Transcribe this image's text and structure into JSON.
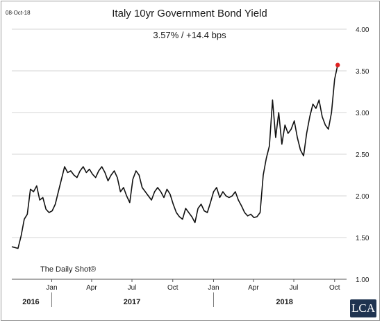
{
  "chart_data": {
    "type": "line",
    "date_stamp": "08-Oct-18",
    "title": "Italy 10yr Government Bond Yield",
    "subtitle": "3.57%  /  +14.4 bps",
    "source": "The Daily Shot®",
    "y_ticks": [
      "4.00",
      "3.50",
      "3.00",
      "2.50",
      "2.00",
      "1.50",
      "1.00"
    ],
    "ylim": [
      1.0,
      4.0
    ],
    "x_month_ticks": [
      {
        "label": "Jan",
        "date": "2017-01-01"
      },
      {
        "label": "Apr",
        "date": "2017-04-01"
      },
      {
        "label": "Jul",
        "date": "2017-07-01"
      },
      {
        "label": "Oct",
        "date": "2017-10-01"
      },
      {
        "label": "Jan",
        "date": "2018-01-01"
      },
      {
        "label": "Apr",
        "date": "2018-04-01"
      },
      {
        "label": "Jul",
        "date": "2018-07-01"
      },
      {
        "label": "Oct",
        "date": "2018-10-01"
      }
    ],
    "x_year_labels": [
      "2016",
      "2017",
      "2018"
    ],
    "xlim": [
      "2016-10-03",
      "2018-10-28"
    ],
    "grid": "horizontal",
    "line_color": "#111111",
    "last_point_color": "#e02020",
    "series": [
      {
        "x": [
          "2016-10-03",
          "2016-10-10",
          "2016-10-17",
          "2016-10-24",
          "2016-10-31",
          "2016-11-07",
          "2016-11-14",
          "2016-11-21",
          "2016-11-28",
          "2016-12-05",
          "2016-12-12",
          "2016-12-19",
          "2016-12-26",
          "2017-01-02",
          "2017-01-09",
          "2017-01-16",
          "2017-01-23",
          "2017-01-30",
          "2017-02-06",
          "2017-02-13",
          "2017-02-20",
          "2017-02-27",
          "2017-03-06",
          "2017-03-13",
          "2017-03-20",
          "2017-03-27",
          "2017-04-03",
          "2017-04-10",
          "2017-04-17",
          "2017-04-24",
          "2017-05-01",
          "2017-05-08",
          "2017-05-15",
          "2017-05-22",
          "2017-05-29",
          "2017-06-05",
          "2017-06-12",
          "2017-06-19",
          "2017-06-26",
          "2017-07-03",
          "2017-07-10",
          "2017-07-17",
          "2017-07-24",
          "2017-07-31",
          "2017-08-07",
          "2017-08-14",
          "2017-08-21",
          "2017-08-28",
          "2017-09-04",
          "2017-09-11",
          "2017-09-18",
          "2017-09-25",
          "2017-10-02",
          "2017-10-09",
          "2017-10-16",
          "2017-10-23",
          "2017-10-30",
          "2017-11-06",
          "2017-11-13",
          "2017-11-20",
          "2017-11-27",
          "2017-12-04",
          "2017-12-11",
          "2017-12-18",
          "2017-12-25",
          "2018-01-01",
          "2018-01-08",
          "2018-01-15",
          "2018-01-22",
          "2018-01-29",
          "2018-02-05",
          "2018-02-12",
          "2018-02-19",
          "2018-02-26",
          "2018-03-05",
          "2018-03-12",
          "2018-03-19",
          "2018-03-26",
          "2018-04-02",
          "2018-04-09",
          "2018-04-16",
          "2018-04-23",
          "2018-04-30",
          "2018-05-07",
          "2018-05-14",
          "2018-05-21",
          "2018-05-28",
          "2018-06-04",
          "2018-06-11",
          "2018-06-18",
          "2018-06-25",
          "2018-07-02",
          "2018-07-09",
          "2018-07-16",
          "2018-07-23",
          "2018-07-30",
          "2018-08-06",
          "2018-08-13",
          "2018-08-20",
          "2018-08-27",
          "2018-09-03",
          "2018-09-10",
          "2018-09-17",
          "2018-09-24",
          "2018-10-01",
          "2018-10-08"
        ],
        "values": [
          1.39,
          1.38,
          1.37,
          1.52,
          1.72,
          1.78,
          2.08,
          2.05,
          2.12,
          1.95,
          1.98,
          1.84,
          1.8,
          1.82,
          1.9,
          2.05,
          2.2,
          2.35,
          2.28,
          2.3,
          2.25,
          2.22,
          2.3,
          2.35,
          2.28,
          2.32,
          2.26,
          2.22,
          2.3,
          2.35,
          2.28,
          2.18,
          2.25,
          2.3,
          2.22,
          2.05,
          2.1,
          2.0,
          1.92,
          2.2,
          2.3,
          2.25,
          2.1,
          2.05,
          2.0,
          1.95,
          2.05,
          2.1,
          2.05,
          1.98,
          2.08,
          2.02,
          1.9,
          1.8,
          1.75,
          1.72,
          1.85,
          1.8,
          1.75,
          1.68,
          1.85,
          1.9,
          1.82,
          1.8,
          1.92,
          2.05,
          2.1,
          1.98,
          2.05,
          2.0,
          1.98,
          2.0,
          2.05,
          1.95,
          1.88,
          1.8,
          1.76,
          1.78,
          1.74,
          1.75,
          1.8,
          2.25,
          2.45,
          2.6,
          3.15,
          2.7,
          3.0,
          2.62,
          2.85,
          2.75,
          2.8,
          2.9,
          2.7,
          2.55,
          2.48,
          2.75,
          2.95,
          3.1,
          3.05,
          3.15,
          2.95,
          2.85,
          2.8,
          3.0,
          3.4,
          3.57
        ]
      }
    ]
  },
  "logo": {
    "text": "LCA"
  }
}
